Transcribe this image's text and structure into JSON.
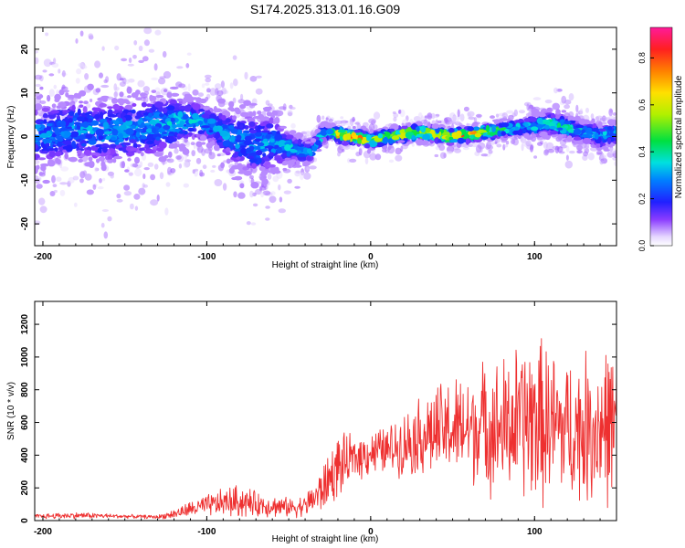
{
  "title": "S174.2025.313.01.16.G09",
  "chart_data": [
    {
      "type": "heatmap",
      "title": "",
      "xlabel": "Height of straight line (km)",
      "ylabel": "Frequency (Hz)",
      "xlim": [
        -205,
        150
      ],
      "ylim": [
        -25,
        25
      ],
      "xticks": [
        -200,
        -100,
        0,
        100
      ],
      "yticks": [
        -20,
        -10,
        0,
        10,
        20
      ],
      "ridge": {
        "x": [
          -200,
          -180,
          -160,
          -140,
          -120,
          -110,
          -100,
          -90,
          -80,
          -70,
          -60,
          -50,
          -40,
          -35,
          -30,
          -25,
          -20,
          -10,
          0,
          10,
          20,
          30,
          40,
          50,
          60,
          70,
          80,
          90,
          100,
          110,
          120,
          130,
          140,
          150
        ],
        "freq": [
          0.5,
          1.5,
          1.0,
          2.0,
          3.0,
          4.0,
          3.0,
          1.0,
          -1.0,
          -2.0,
          -1.5,
          -2.5,
          -3.5,
          -3.0,
          0.5,
          1.0,
          0.5,
          0.0,
          -1.0,
          0.0,
          0.5,
          1.0,
          0.5,
          0.0,
          0.5,
          1.0,
          1.5,
          2.0,
          2.5,
          3.0,
          2.0,
          1.0,
          0.0,
          1.0
        ],
        "peak_amplitude": [
          0.35,
          0.35,
          0.35,
          0.35,
          0.4,
          0.4,
          0.35,
          0.35,
          0.35,
          0.35,
          0.35,
          0.4,
          0.4,
          0.35,
          0.45,
          0.5,
          0.85,
          0.9,
          0.7,
          0.65,
          0.8,
          0.7,
          0.75,
          0.8,
          0.9,
          0.7,
          0.55,
          0.5,
          0.45,
          0.45,
          0.45,
          0.4,
          0.4,
          0.4
        ],
        "spread_hz": [
          9,
          9,
          9,
          9,
          8,
          6,
          5,
          6,
          8,
          9,
          8,
          4,
          3,
          3,
          2,
          2,
          2,
          2,
          2,
          2,
          2,
          2,
          2,
          2,
          2,
          2,
          2,
          2,
          3,
          3,
          3,
          3,
          3,
          3
        ]
      },
      "colorbar": {
        "label": "Normalized spectral amplitude",
        "range": [
          0,
          0.93
        ],
        "ticks": [
          "0.0",
          "0.2",
          "0.4",
          "0.6",
          "0.8"
        ]
      }
    },
    {
      "type": "line",
      "title": "",
      "xlabel": "Height of straight line (km)",
      "ylabel": "SNR (10 * v/v)",
      "xlim": [
        -205,
        150
      ],
      "ylim": [
        0,
        1340
      ],
      "xticks": [
        -200,
        -100,
        0,
        100
      ],
      "yticks": [
        0,
        200,
        400,
        600,
        800,
        1000,
        1200
      ],
      "color": "#ee3030",
      "series": [
        {
          "name": "SNR",
          "x": [
            -205,
            -190,
            -175,
            -160,
            -145,
            -130,
            -120,
            -110,
            -100,
            -90,
            -80,
            -70,
            -60,
            -50,
            -40,
            -30,
            -25,
            -20,
            -15,
            -10,
            0,
            10,
            20,
            30,
            40,
            50,
            60,
            70,
            80,
            90,
            100,
            110,
            120,
            130,
            140,
            150
          ],
          "mean": [
            25,
            30,
            32,
            28,
            25,
            22,
            40,
            70,
            90,
            110,
            120,
            100,
            90,
            80,
            90,
            180,
            260,
            330,
            350,
            380,
            420,
            430,
            470,
            520,
            540,
            560,
            560,
            590,
            560,
            600,
            620,
            580,
            560,
            560,
            580,
            590
          ],
          "amplitude": [
            15,
            20,
            20,
            15,
            12,
            12,
            30,
            50,
            70,
            90,
            110,
            80,
            70,
            60,
            70,
            150,
            180,
            200,
            180,
            140,
            150,
            150,
            200,
            250,
            300,
            330,
            350,
            400,
            450,
            500,
            550,
            500,
            450,
            480,
            500,
            520
          ]
        }
      ]
    }
  ]
}
